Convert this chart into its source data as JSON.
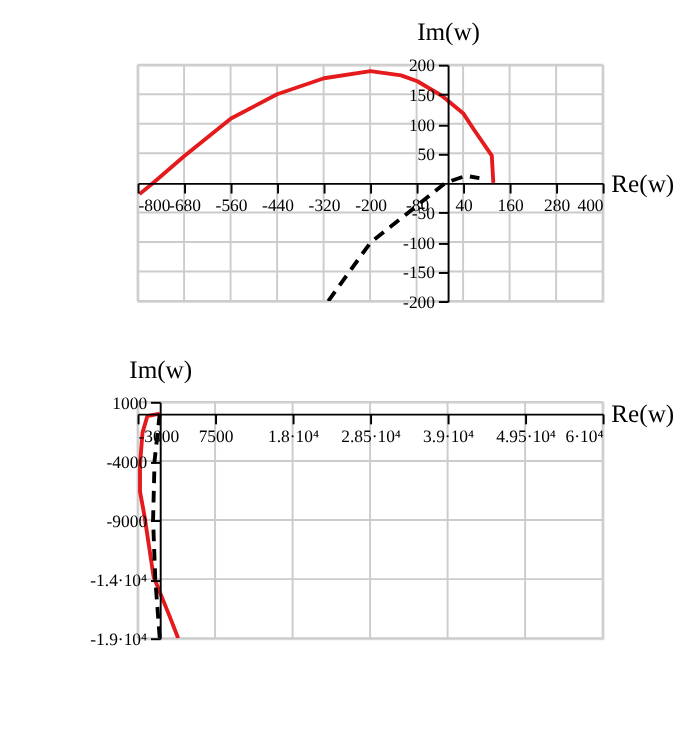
{
  "chart_data": [
    {
      "type": "line",
      "xlabel": "Re(w)",
      "ylabel": "Im(w)",
      "xlim": [
        -800,
        400
      ],
      "ylim": [
        -200,
        200
      ],
      "xticks": [
        -800,
        -680,
        -560,
        -440,
        -320,
        -200,
        -80,
        40,
        160,
        280,
        400
      ],
      "yticks": [
        -200,
        -150,
        -100,
        -50,
        50,
        100,
        150,
        200
      ],
      "grid": true,
      "series": [
        {
          "color": "#e41a1c",
          "line_style": "solid",
          "x": [
            -795,
            -760,
            -680,
            -559,
            -440,
            -319,
            -199,
            -120,
            -78,
            -14,
            40,
            66,
            114,
            118
          ],
          "values": [
            -19,
            0,
            45,
            109,
            150,
            177,
            189,
            182,
            172,
            147,
            118,
            92,
            46,
            0
          ]
        },
        {
          "color": "#000000",
          "line_style": "dashed",
          "x": [
            -308,
            -199,
            -78,
            -6,
            47,
            82
          ],
          "values": [
            -200,
            -101,
            -38,
            0,
            12,
            8
          ]
        }
      ]
    },
    {
      "type": "line",
      "xlabel": "Re(w)",
      "ylabel": "Im(w)",
      "xlim": [
        -3000,
        60000
      ],
      "ylim": [
        -19000,
        1000
      ],
      "xticks": [
        -3000,
        7500,
        {
          "value": 18000,
          "label": "1.8·10⁴"
        },
        {
          "value": 28500,
          "label": "2.85·10⁴"
        },
        {
          "value": 39000,
          "label": "3.9·10⁴"
        },
        {
          "value": 49500,
          "label": "4.95·10⁴"
        },
        {
          "value": 60000,
          "label": "6·10⁴"
        }
      ],
      "yticks": [
        1000,
        -4000,
        -9000,
        {
          "value": -14000,
          "label": "-1.4·10⁴"
        },
        {
          "value": -19000,
          "label": "-1.9·10⁴"
        }
      ],
      "grid": true,
      "series": [
        {
          "color": "#e41a1c",
          "line_style": "solid",
          "x": [
            0,
            -1670,
            -2330,
            -2670,
            -2670,
            -2080,
            -830,
            1250,
            2500
          ],
          "values": [
            0,
            -200,
            -1600,
            -4300,
            -6600,
            -8600,
            -13800,
            -17000,
            -19000
          ]
        },
        {
          "color": "#000000",
          "line_style": "dashed",
          "x": [
            0,
            -700,
            -900,
            -600,
            0
          ],
          "values": [
            0,
            -4000,
            -9000,
            -14000,
            -19000
          ]
        }
      ]
    }
  ]
}
